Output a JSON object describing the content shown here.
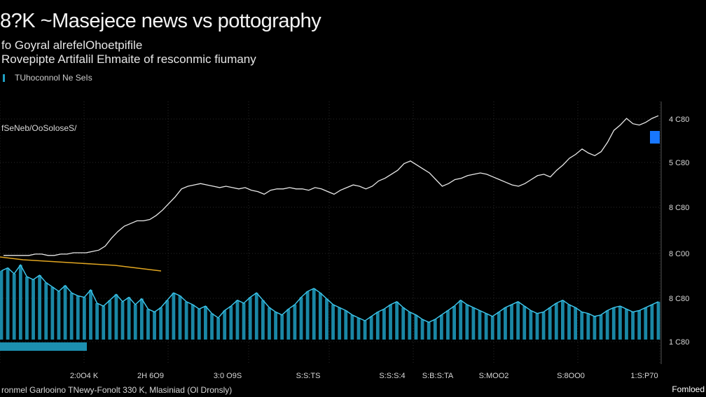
{
  "header": {
    "title": "8?K ~Masejece news vs pottography",
    "subtitle_1": "fo Goyral alrefelOhoetpifile",
    "subtitle_2": "Rovepipte Artifalil Ehmaite of resconmic fiumany",
    "legend_label": "TUhoconnol Ne SeIs"
  },
  "footer": {
    "source": "ronmel Garlooino TNewy-Fonolt 330 K, Mlasiniad (Ol Dronsly)",
    "brand": "Fomloed"
  },
  "colors": {
    "background": "#000000",
    "price_line": "#e8e8e8",
    "volume_bars": "#1f9fc2",
    "trend_line": "#e0a520",
    "highlight": "#1877ff",
    "grid": "#2a2a2a"
  },
  "chart_data": {
    "type": "line",
    "series_label": "fSeNeb/OoSoloseS/",
    "y_ticks": [
      "4 C80",
      "5 C80",
      "8 C80",
      "8 C00",
      "8 C80",
      "1 C80"
    ],
    "x_ticks": [
      "2:0O4 K",
      "2H 6O9",
      "3:0 O9S",
      "S:S:TS",
      "S:S:S:4",
      "S:B:S:TA",
      "S:MOO2",
      "S:8OO0",
      "1:S:P70"
    ],
    "series": [
      {
        "role": "price",
        "values": [
          28,
          28,
          28,
          28,
          28,
          29,
          29,
          28,
          28,
          29,
          29,
          30,
          30,
          30,
          31,
          32,
          35,
          41,
          46,
          50,
          52,
          54,
          54,
          55,
          58,
          62,
          67,
          72,
          78,
          80,
          81,
          82,
          81,
          80,
          79,
          80,
          79,
          78,
          79,
          77,
          76,
          74,
          77,
          78,
          78,
          79,
          78,
          78,
          77,
          79,
          78,
          76,
          74,
          77,
          79,
          81,
          80,
          78,
          80,
          84,
          86,
          89,
          92,
          97,
          99,
          96,
          93,
          90,
          85,
          80,
          82,
          85,
          86,
          88,
          89,
          90,
          89,
          87,
          85,
          83,
          81,
          80,
          82,
          85,
          88,
          89,
          87,
          92,
          96,
          101,
          104,
          108,
          105,
          103,
          106,
          113,
          122,
          126,
          131,
          127,
          126,
          128,
          131,
          133
        ]
      },
      {
        "role": "volume",
        "values": [
          42,
          44,
          40,
          46,
          38,
          36,
          39,
          34,
          31,
          28,
          32,
          27,
          25,
          24,
          29,
          20,
          18,
          22,
          26,
          21,
          24,
          19,
          23,
          16,
          14,
          17,
          22,
          27,
          25,
          21,
          19,
          16,
          18,
          13,
          10,
          15,
          18,
          22,
          20,
          24,
          27,
          22,
          17,
          14,
          12,
          16,
          19,
          24,
          28,
          30,
          27,
          23,
          19,
          17,
          15,
          12,
          10,
          8,
          11,
          14,
          16,
          19,
          21,
          17,
          14,
          12,
          9,
          7,
          9,
          12,
          15,
          18,
          22,
          19,
          17,
          15,
          13,
          11,
          14,
          17,
          19,
          21,
          18,
          15,
          13,
          14,
          17,
          20,
          22,
          19,
          17,
          14,
          13,
          11,
          12,
          15,
          17,
          18,
          16,
          14,
          15,
          17,
          19,
          21
        ]
      },
      {
        "role": "trend",
        "values": [
          58,
          56,
          54,
          53,
          52,
          51,
          50,
          49,
          48,
          47,
          46,
          44,
          42,
          40,
          38
        ]
      }
    ],
    "grid": true
  }
}
